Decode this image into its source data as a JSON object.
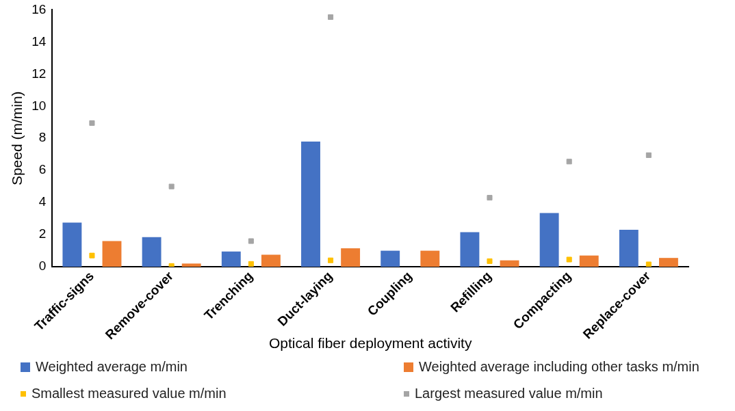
{
  "chart_data": {
    "type": "bar",
    "xlabel": "Optical fiber deployment activity",
    "ylabel": "Speed (m/min)",
    "categories": [
      "Traffic-signs",
      "Remove-cover",
      "Trenching",
      "Duct-laying",
      "Coupling",
      "Refilling",
      "Compacting",
      "Replace-cover"
    ],
    "series": [
      {
        "name": "Weighted average m/min",
        "color": "#4472c4",
        "values": [
          2.75,
          1.85,
          0.95,
          7.8,
          1.0,
          2.15,
          3.35,
          2.3
        ]
      },
      {
        "name": "Weighted average including other tasks m/min",
        "color": "#ed7d31",
        "values": [
          1.6,
          0.2,
          0.75,
          1.15,
          1.0,
          0.4,
          0.7,
          0.55
        ]
      },
      {
        "name": "Smallest measured value m/min",
        "type": "scatter",
        "marker": "square",
        "color": "#ffc000",
        "x": [
          "Traffic-signs",
          "Remove-cover",
          "Trenching",
          "Duct-laying",
          "Coupling",
          "Refilling",
          "Compacting",
          "Replace-cover"
        ],
        "values": [
          0.7,
          0.05,
          0.18,
          0.4,
          null,
          0.35,
          0.45,
          0.15
        ]
      },
      {
        "name": "Largest measured value m/min",
        "type": "scatter",
        "marker": "square",
        "color": "#a5a5a5",
        "x": [
          "Traffic-signs",
          "Remove-cover",
          "Trenching",
          "Duct-laying",
          "Coupling",
          "Refilling",
          "Compacting",
          "Replace-cover"
        ],
        "values": [
          8.95,
          5.0,
          1.6,
          15.55,
          null,
          4.3,
          6.55,
          6.95
        ]
      }
    ],
    "ylim": [
      0,
      16
    ],
    "yticks": [
      0,
      2,
      4,
      6,
      8,
      10,
      12,
      14,
      16
    ],
    "grid": false,
    "legend": "bottom"
  }
}
